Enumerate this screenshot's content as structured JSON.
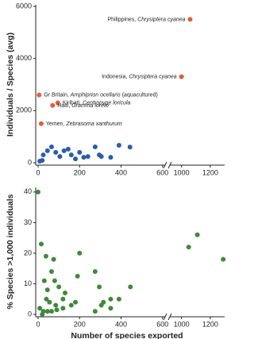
{
  "chart_data": [
    {
      "type": "scatter",
      "y_label": "Individuals / Species (avg)",
      "xlim": [
        0,
        1300
      ],
      "xbreak": [
        620,
        930
      ],
      "ylim": [
        0,
        6000
      ],
      "xticks": [
        0,
        200,
        400,
        600,
        1000,
        1200
      ],
      "yticks": [
        0,
        2000,
        4000,
        6000
      ],
      "series": [
        {
          "color": "#2a5ea8",
          "x": [
            8,
            20,
            25,
            45,
            65,
            85,
            105,
            125,
            145,
            160,
            180,
            200,
            220,
            240,
            275,
            295,
            305,
            350,
            390,
            443
          ],
          "values": [
            60,
            90,
            300,
            460,
            610,
            400,
            240,
            460,
            520,
            300,
            150,
            400,
            210,
            240,
            610,
            300,
            240,
            210,
            670,
            600
          ]
        },
        {
          "color": "#e0603a",
          "x": [
            1060,
            1000,
            5,
            95,
            70,
            15
          ],
          "values": [
            5500,
            3300,
            2600,
            2300,
            2200,
            1500
          ],
          "labels": [
            [
              "Philippines, ",
              "Chrysiptera cyanea"
            ],
            [
              "Indonesia, ",
              "Chrysiptera cyanea"
            ],
            [
              "Gr Britain, ",
              "Amphiprion ocellaris",
              " (aquacultured)"
            ],
            [
              "Kiribati, ",
              "Centropyge  loricula"
            ],
            [
              "Haiti, ",
              "Gramma loreto"
            ],
            [
              "Yemen, ",
              "Zebrasoma xanthurum"
            ]
          ]
        }
      ]
    },
    {
      "type": "scatter",
      "y_label": "% Species >1,000 individuals",
      "x_label": "Number of species exported",
      "xlim": [
        0,
        1300
      ],
      "xbreak": [
        620,
        930
      ],
      "ylim": [
        0,
        41
      ],
      "xticks": [
        0,
        200,
        400,
        600,
        1000,
        1200
      ],
      "yticks": [
        0,
        10,
        20,
        30,
        40
      ],
      "series": [
        {
          "color": "#3f8a3a",
          "x": [
            0,
            15,
            38,
            30,
            200,
            75,
            65,
            80,
            45,
            100,
            130,
            40,
            55,
            85,
            120,
            160,
            180,
            8,
            25,
            45,
            65,
            90,
            120,
            20,
            295,
            275,
            315,
            305,
            350,
            390,
            445,
            350,
            275,
            190,
            1050,
            1110,
            1290
          ],
          "values": [
            40,
            23,
            19,
            11,
            20,
            18,
            14,
            11,
            8,
            9,
            7,
            5,
            4,
            3,
            5,
            3,
            4,
            2,
            1,
            1,
            1,
            1.5,
            2,
            0,
            9,
            14,
            4,
            3,
            5,
            5,
            9,
            2,
            1,
            12.5,
            22,
            26,
            18
          ]
        }
      ]
    }
  ]
}
